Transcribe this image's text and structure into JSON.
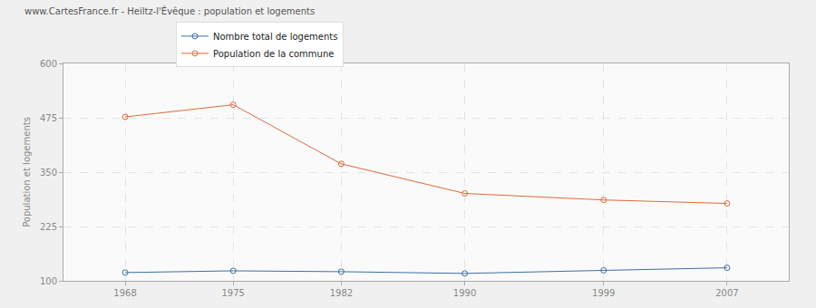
{
  "chart_data": {
    "type": "line",
    "title": "www.CartesFrance.fr - Heiltz-l'Évêque : population et logements",
    "y_label": "Population et logements",
    "x": [
      1968,
      1975,
      1982,
      1990,
      1999,
      2007
    ],
    "series": [
      {
        "name": "Nombre total de logements",
        "color": "#3e6ea3",
        "values": [
          119,
          123,
          121,
          117,
          124,
          130
        ]
      },
      {
        "name": "Population de la commune",
        "color": "#e06a3c",
        "values": [
          477,
          505,
          369,
          301,
          286,
          278
        ]
      }
    ],
    "xlim": [
      1964,
      2011
    ],
    "xticks": [
      1968,
      1975,
      1982,
      1990,
      1999,
      2007
    ],
    "ylim": [
      100,
      600
    ],
    "yticks": [
      100,
      225,
      350,
      475,
      600
    ],
    "grid": true,
    "legend": "top",
    "marker": "open circle",
    "line_style": "solid"
  }
}
